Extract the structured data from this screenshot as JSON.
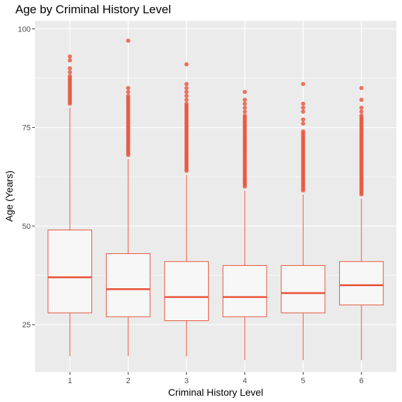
{
  "chart_data": {
    "type": "boxplot",
    "title": "Age by Criminal History Level",
    "xlabel": "Criminal History Level",
    "ylabel": "Age (Years)",
    "categories": [
      "1",
      "2",
      "3",
      "4",
      "5",
      "6"
    ],
    "y_ticks": [
      25,
      50,
      75,
      100
    ],
    "ylim": [
      13,
      102
    ],
    "grid": true,
    "colors": {
      "stroke": "#e8533a",
      "box_fill": "#f7f7f7",
      "panel": "#ebebeb",
      "grid": "#ffffff"
    },
    "boxes": [
      {
        "category": "1",
        "min": 17,
        "q1": 28,
        "median": 37,
        "q3": 49,
        "max": 80,
        "outliers": [
          81,
          81.5,
          82,
          82.5,
          83,
          83.5,
          84,
          84.5,
          85,
          85.5,
          86,
          86.5,
          87,
          87.5,
          88,
          89,
          90,
          92,
          93
        ]
      },
      {
        "category": "2",
        "min": 17,
        "q1": 27,
        "median": 34,
        "q3": 43,
        "max": 67,
        "outliers": [
          68,
          68.5,
          69,
          69.5,
          70,
          70.5,
          71,
          71.5,
          72,
          72.5,
          73,
          73.5,
          74,
          74.5,
          75,
          75.5,
          76,
          76.5,
          77,
          77.5,
          78,
          78.5,
          79,
          79.5,
          80,
          80.5,
          81,
          81.5,
          82,
          82.5,
          83,
          84,
          85,
          97
        ]
      },
      {
        "category": "3",
        "min": 17,
        "q1": 26,
        "median": 32,
        "q3": 41,
        "max": 63,
        "outliers": [
          64,
          64.5,
          65,
          65.5,
          66,
          66.5,
          67,
          67.5,
          68,
          68.5,
          69,
          69.5,
          70,
          70.5,
          71,
          71.5,
          72,
          72.5,
          73,
          73.5,
          74,
          74.5,
          75,
          75.5,
          76,
          76.5,
          77,
          77.5,
          78,
          78.5,
          79,
          79.5,
          80,
          80.5,
          81,
          82,
          83,
          84,
          85,
          86,
          91
        ]
      },
      {
        "category": "4",
        "min": 16,
        "q1": 27,
        "median": 32,
        "q3": 40,
        "max": 59,
        "outliers": [
          60,
          60.5,
          61,
          61.5,
          62,
          62.5,
          63,
          63.5,
          64,
          64.5,
          65,
          65.5,
          66,
          66.5,
          67,
          67.5,
          68,
          68.5,
          69,
          69.5,
          70,
          70.5,
          71,
          71.5,
          72,
          72.5,
          73,
          73.5,
          74,
          74.5,
          75,
          75.5,
          76,
          76.5,
          77,
          77.5,
          78,
          79,
          80,
          81,
          82,
          84
        ]
      },
      {
        "category": "5",
        "min": 16,
        "q1": 28,
        "median": 33,
        "q3": 40,
        "max": 58,
        "outliers": [
          59,
          59.5,
          60,
          60.5,
          61,
          61.5,
          62,
          62.5,
          63,
          63.5,
          64,
          64.5,
          65,
          65.5,
          66,
          66.5,
          67,
          67.5,
          68,
          68.5,
          69,
          69.5,
          70,
          70.5,
          71,
          71.5,
          72,
          72.5,
          73,
          73.5,
          74,
          76,
          77,
          79,
          80,
          81,
          86
        ]
      },
      {
        "category": "6",
        "min": 16,
        "q1": 30,
        "median": 35,
        "q3": 41,
        "max": 57,
        "outliers": [
          58,
          58.5,
          59,
          59.5,
          60,
          60.5,
          61,
          61.5,
          62,
          62.5,
          63,
          63.5,
          64,
          64.5,
          65,
          65.5,
          66,
          66.5,
          67,
          67.5,
          68,
          68.5,
          69,
          69.5,
          70,
          70.5,
          71,
          71.5,
          72,
          72.5,
          73,
          73.5,
          74,
          74.5,
          75,
          75.5,
          76,
          76.5,
          77,
          77.5,
          78,
          79,
          80,
          82,
          85
        ]
      }
    ]
  }
}
